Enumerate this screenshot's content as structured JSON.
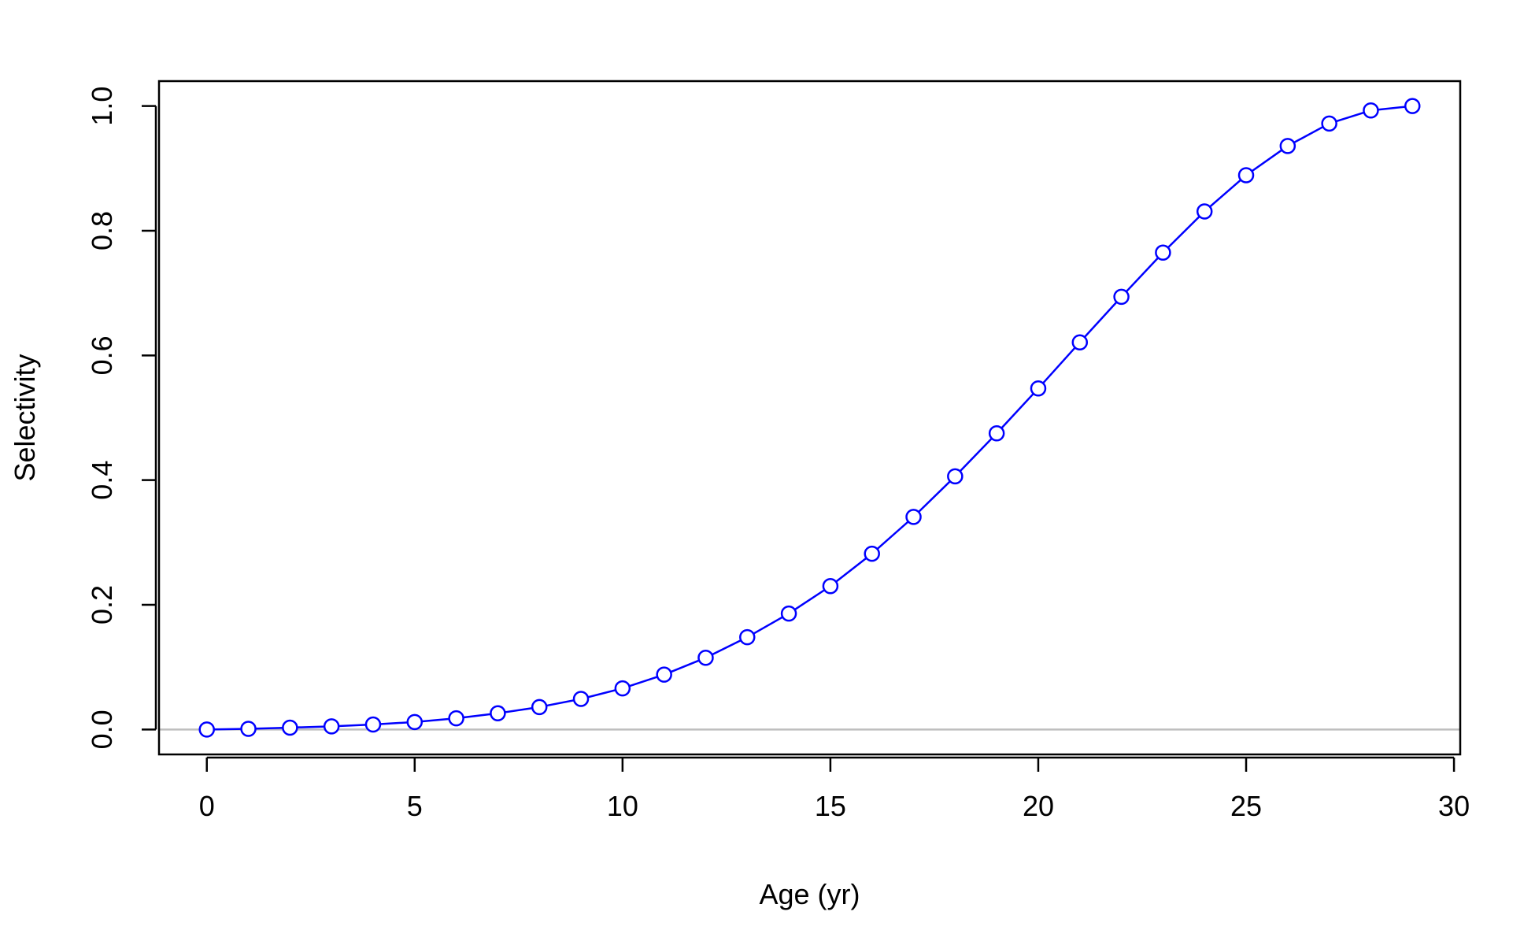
{
  "chart_data": {
    "type": "line",
    "title": "",
    "xlabel": "Age (yr)",
    "ylabel": "Selectivity",
    "xlim": [
      -1.15,
      30.15
    ],
    "ylim": [
      -0.04,
      1.04
    ],
    "xticks": [
      0,
      5,
      10,
      15,
      20,
      25,
      30
    ],
    "yticks": [
      0.0,
      0.2,
      0.4,
      0.6,
      0.8,
      1.0
    ],
    "xtick_labels": [
      "0",
      "5",
      "10",
      "15",
      "20",
      "25",
      "30"
    ],
    "ytick_labels": [
      "0.0",
      "0.2",
      "0.4",
      "0.6",
      "0.8",
      "1.0"
    ],
    "grid": false,
    "reference_line": {
      "y": 0,
      "color": "#bebebe"
    },
    "series": [
      {
        "color": "#0000ff",
        "markers": "open-circle",
        "x": [
          0,
          1,
          2,
          3,
          4,
          5,
          6,
          7,
          8,
          9,
          10,
          11,
          12,
          13,
          14,
          15,
          16,
          17,
          18,
          19,
          20,
          21,
          22,
          23,
          24,
          25,
          26,
          27,
          28,
          29
        ],
        "y": [
          0.0,
          0.001,
          0.003,
          0.005,
          0.008,
          0.012,
          0.018,
          0.026,
          0.036,
          0.049,
          0.066,
          0.088,
          0.115,
          0.148,
          0.186,
          0.23,
          0.282,
          0.341,
          0.406,
          0.475,
          0.547,
          0.621,
          0.694,
          0.765,
          0.831,
          0.889,
          0.936,
          0.972,
          0.993,
          1.0
        ]
      }
    ]
  }
}
